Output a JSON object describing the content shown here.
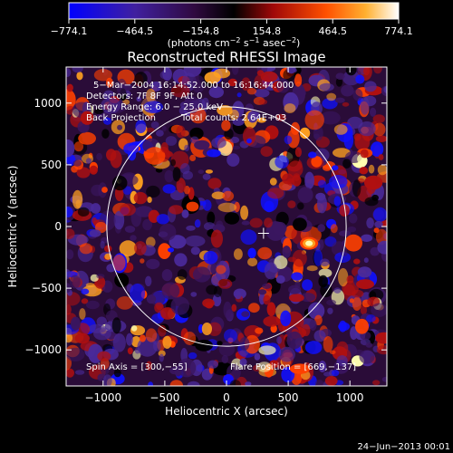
{
  "chart_data": {
    "type": "heatmap",
    "title": "Reconstructed RHESSI Image",
    "xlabel": "Heliocentric X (arcsec)",
    "ylabel": "Heliocentric Y (arcsec)",
    "xlim": [
      -1300,
      1300
    ],
    "ylim": [
      -1300,
      1300
    ],
    "x_ticks": [
      {
        "value": -1000,
        "label": "−1000"
      },
      {
        "value": -500,
        "label": "−500"
      },
      {
        "value": 0,
        "label": "0"
      },
      {
        "value": 500,
        "label": "500"
      },
      {
        "value": 1000,
        "label": "1000"
      }
    ],
    "y_ticks": [
      {
        "value": 1000,
        "label": "1000"
      },
      {
        "value": 500,
        "label": "500"
      },
      {
        "value": 0,
        "label": "0"
      },
      {
        "value": -500,
        "label": "−500"
      },
      {
        "value": -1000,
        "label": "−1000"
      }
    ],
    "colorbar": {
      "range": [
        -774.1,
        774.1
      ],
      "tick_values": [
        -774.1,
        -464.5,
        -154.8,
        154.8,
        464.5,
        774.1
      ],
      "tick_labels": [
        "−774.1",
        "−464.5",
        "−154.8",
        "154.8",
        "464.5",
        "774.1"
      ],
      "units_main": "(photons cm",
      "units_sup1": "−2",
      "units_mid": " s",
      "units_sup2": "−1",
      "units_mid2": " asec",
      "units_sup3": "−2",
      "units_end": ")"
    },
    "annotations": {
      "time_range": "5−Mar−2004 16:14:52.000 to 16:16:44.000",
      "detectors": "Detectors: 7F 8F 9F, Att 0",
      "energy": "Energy Range: 6.0 − 25.0 keV",
      "method": "Back Projection",
      "total_counts": "Total counts: 2.64E+03",
      "spin_axis": "Spin Axis = [300,−55]",
      "flare_position": "Flare Position = [669,−137]"
    },
    "solar_limb_radius_arcsec": 970,
    "center_marker": [
      300,
      -55
    ],
    "bright_source": [
      669,
      -137
    ],
    "colormap": [
      "#1010ff",
      "#4a2a9a",
      "#3a1660",
      "#000000",
      "#b01010",
      "#ff4000",
      "#ffa020",
      "#ffffb0",
      "#ffffff"
    ]
  },
  "footer": {
    "date": "24−Jun−2013 00:01"
  }
}
